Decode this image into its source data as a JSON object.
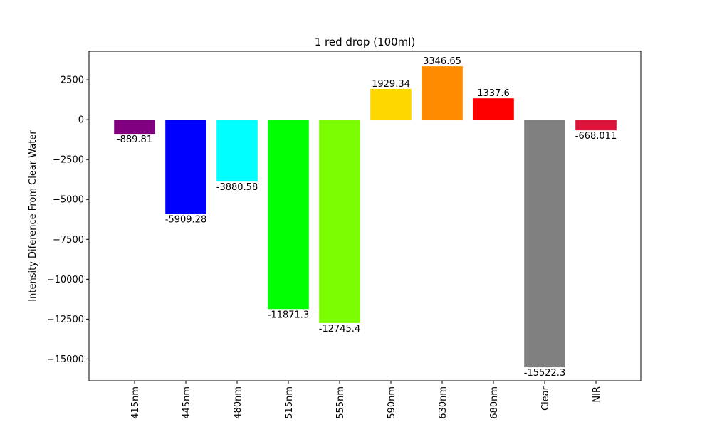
{
  "chart_data": {
    "type": "bar",
    "title": "1 red drop (100ml)",
    "xlabel": "",
    "ylabel": "Intensity Diference From Clear Water",
    "categories": [
      "415nm",
      "445nm",
      "480nm",
      "515nm",
      "555nm",
      "590nm",
      "630nm",
      "680nm",
      "Clear",
      "NIR"
    ],
    "values": [
      -889.81,
      -5909.28,
      -3880.58,
      -11871.3,
      -12745.4,
      1929.34,
      3346.65,
      1337.6,
      -15522.3,
      -668.011
    ],
    "value_labels": [
      "-889.81",
      "-5909.28",
      "-3880.58",
      "-11871.3",
      "-12745.4",
      "1929.34",
      "3346.65",
      "1337.6",
      "-15522.3",
      "-668.011"
    ],
    "colors": [
      "#800080",
      "#0000ff",
      "#00ffff",
      "#00ff00",
      "#7cfc00",
      "#ffd700",
      "#ff8c00",
      "#ff0000",
      "#808080",
      "#dc143c"
    ],
    "yticks": [
      2500,
      0,
      -2500,
      -5000,
      -7500,
      -10000,
      -12500,
      -15000
    ],
    "ytick_labels": [
      "2500",
      "0",
      "−2500",
      "−5000",
      "−7500",
      "−10000",
      "−12500",
      "−15000"
    ],
    "ylim": [
      -16366,
      4290
    ],
    "grid": false,
    "legend": "none"
  }
}
